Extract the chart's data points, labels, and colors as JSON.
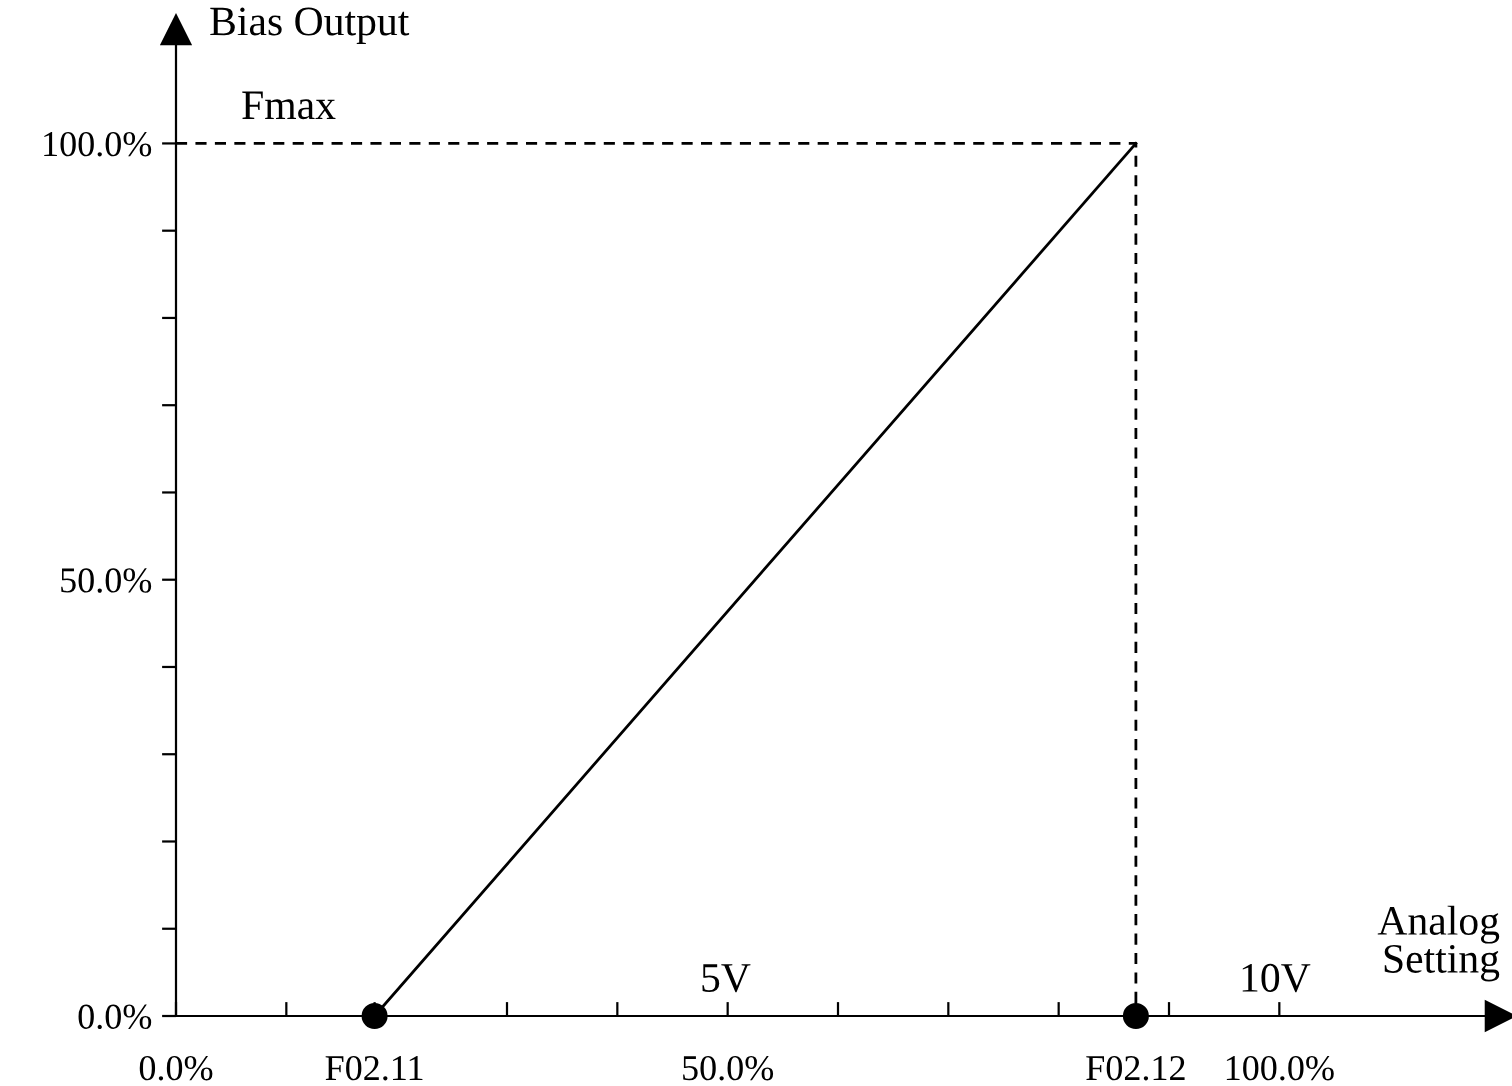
{
  "chart_data": {
    "type": "line",
    "xlabel": "Analog\nSetting",
    "ylabel": "Bias Output",
    "series": [
      {
        "x": [
          18,
          87
        ],
        "values": [
          0,
          100
        ],
        "color": "#000000",
        "line_style": "solid"
      },
      {
        "x": [
          0,
          87,
          87
        ],
        "values": [
          100,
          100,
          0
        ],
        "color": "#000000",
        "line_style": "dashed"
      },
      {
        "type": "scatter",
        "x": [
          18,
          87
        ],
        "values": [
          0,
          0
        ],
        "color": "#000000",
        "marker": "circle"
      }
    ],
    "annotations": [
      "Fmax",
      "5V",
      "10V"
    ],
    "xlim": [
      0,
      120
    ],
    "ylim": [
      0,
      113
    ],
    "xticks": [
      {
        "value": 0,
        "label": "0.0%"
      },
      {
        "value": 10,
        "label": null
      },
      {
        "value": 18,
        "label": "F02.11"
      },
      {
        "value": 30,
        "label": null
      },
      {
        "value": 40,
        "label": null
      },
      {
        "value": 50,
        "label": "50.0%"
      },
      {
        "value": 60,
        "label": null
      },
      {
        "value": 70,
        "label": null
      },
      {
        "value": 80,
        "label": null
      },
      {
        "value": 87,
        "label": "F02.12"
      },
      {
        "value": 90,
        "label": null
      },
      {
        "value": 100,
        "label": "100.0%"
      }
    ],
    "yticks": [
      {
        "value": 0,
        "label": "0.0%"
      },
      {
        "value": 10,
        "label": null
      },
      {
        "value": 20,
        "label": null
      },
      {
        "value": 30,
        "label": null
      },
      {
        "value": 40,
        "label": null
      },
      {
        "value": 50,
        "label": "50.0%"
      },
      {
        "value": 60,
        "label": null
      },
      {
        "value": 70,
        "label": null
      },
      {
        "value": 80,
        "label": null
      },
      {
        "value": 90,
        "label": null
      },
      {
        "value": 100,
        "label": "100.0%"
      }
    ],
    "grid": false,
    "legend": false
  }
}
